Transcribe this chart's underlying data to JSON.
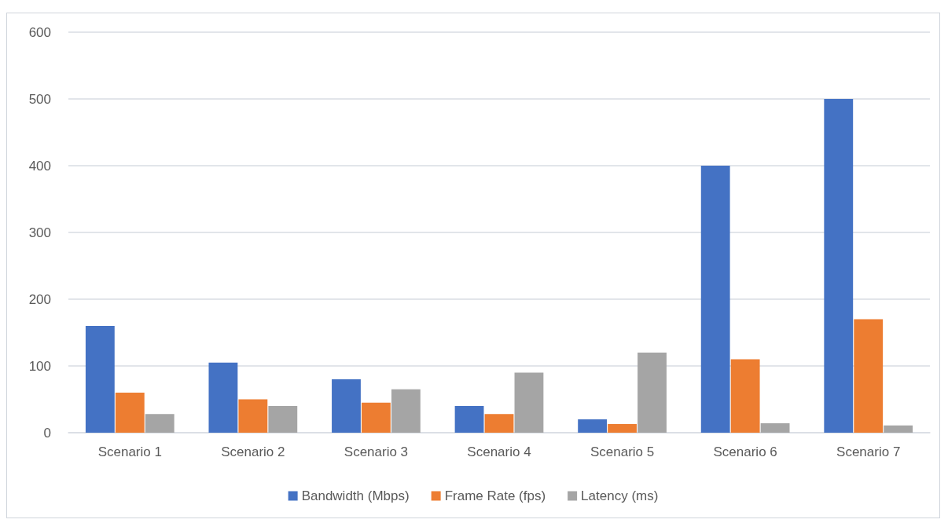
{
  "chart_data": {
    "type": "bar",
    "categories": [
      "Scenario 1",
      "Scenario 2",
      "Scenario 3",
      "Scenario 4",
      "Scenario 5",
      "Scenario 6",
      "Scenario 7"
    ],
    "series": [
      {
        "name": "Bandwidth (Mbps)",
        "color": "#4472c4",
        "values": [
          160,
          105,
          80,
          40,
          20,
          400,
          500
        ]
      },
      {
        "name": "Frame Rate (fps)",
        "color": "#ed7d31",
        "values": [
          60,
          50,
          45,
          28,
          13,
          110,
          170
        ]
      },
      {
        "name": "Latency (ms)",
        "color": "#a5a5a5",
        "values": [
          28,
          40,
          65,
          90,
          120,
          14,
          11
        ]
      }
    ],
    "ylim": [
      0,
      600
    ],
    "yticks": [
      0,
      100,
      200,
      300,
      400,
      500,
      600
    ],
    "grid": "y",
    "legend": "bottom"
  }
}
